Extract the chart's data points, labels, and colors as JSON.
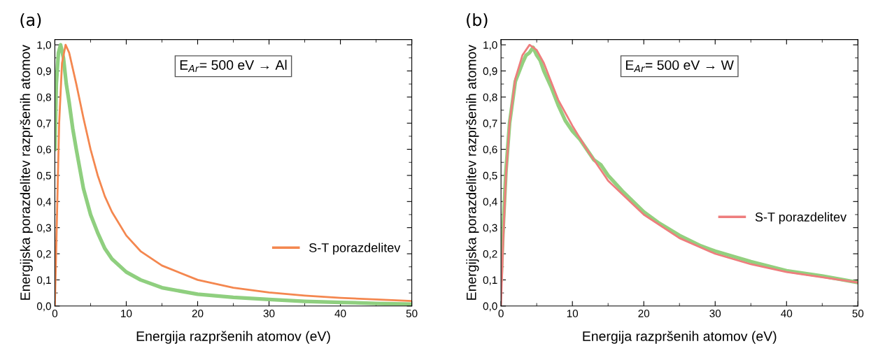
{
  "chart_data": [
    {
      "type": "line",
      "title": "(a)",
      "xlabel": "Energija razpršenih atomov (eV)",
      "ylabel": "Energijska porazdelitev razpršenih atomov",
      "annotations": [
        "E$_{Ar}$= 500 eV → Al"
      ],
      "legend": "bottom right",
      "grid": false,
      "xlim": [
        0,
        50
      ],
      "ylim": [
        0,
        1.02
      ],
      "xticks": [
        0,
        10,
        20,
        30,
        40,
        50
      ],
      "yticks": [
        {
          "value": 0,
          "label": "0,0"
        },
        {
          "value": 0.1,
          "label": "0,1"
        },
        {
          "value": 0.2,
          "label": "0,2"
        },
        {
          "value": 0.3,
          "label": "0,3"
        },
        {
          "value": 0.4,
          "label": "0,4"
        },
        {
          "value": 0.5,
          "label": "0,5"
        },
        {
          "value": 0.6,
          "label": "0,6"
        },
        {
          "value": 0.7,
          "label": "0,7"
        },
        {
          "value": 0.8,
          "label": "0,8"
        },
        {
          "value": 0.9,
          "label": "0,9"
        },
        {
          "value": 1.0,
          "label": "1,0"
        }
      ],
      "series": [
        {
          "color": "#8fcf7f",
          "x": [
            0,
            0.2,
            0.5,
            0.8,
            1.2,
            1.6,
            2,
            2.5,
            3,
            4,
            5,
            6,
            7,
            8,
            10,
            12,
            15,
            20,
            25,
            30,
            35,
            40,
            45,
            50
          ],
          "values": [
            0.6,
            0.85,
            0.97,
            1.0,
            0.95,
            0.85,
            0.78,
            0.68,
            0.6,
            0.45,
            0.35,
            0.28,
            0.22,
            0.18,
            0.13,
            0.1,
            0.07,
            0.045,
            0.033,
            0.025,
            0.018,
            0.014,
            0.01,
            0.007
          ]
        },
        {
          "name": "S-T porazdelitev",
          "color": "#f4874f",
          "x": [
            0,
            0.3,
            0.6,
            1.0,
            1.5,
            2,
            3,
            4,
            5,
            6,
            7,
            8,
            10,
            12,
            15,
            20,
            25,
            30,
            35,
            40,
            45,
            50
          ],
          "values": [
            0,
            0.35,
            0.7,
            0.93,
            1.0,
            0.97,
            0.85,
            0.72,
            0.6,
            0.5,
            0.42,
            0.36,
            0.27,
            0.21,
            0.155,
            0.1,
            0.07,
            0.052,
            0.04,
            0.031,
            0.025,
            0.019
          ]
        }
      ]
    },
    {
      "type": "line",
      "title": "(b)",
      "xlabel": "Energija razpršenih atomov (eV)",
      "ylabel": "Energijska porazdelitev razpršenih atomov",
      "annotations": [
        "E$_{Ar}$= 500 eV → W"
      ],
      "legend": "right",
      "grid": false,
      "xlim": [
        0,
        50
      ],
      "ylim": [
        0,
        1.02
      ],
      "xticks": [
        0,
        10,
        20,
        30,
        40,
        50
      ],
      "yticks": [
        {
          "value": 0,
          "label": "0,0"
        },
        {
          "value": 0.1,
          "label": "0,1"
        },
        {
          "value": 0.2,
          "label": "0,2"
        },
        {
          "value": 0.3,
          "label": "0,3"
        },
        {
          "value": 0.4,
          "label": "0,4"
        },
        {
          "value": 0.5,
          "label": "0,5"
        },
        {
          "value": 0.6,
          "label": "0,6"
        },
        {
          "value": 0.7,
          "label": "0,7"
        },
        {
          "value": 0.8,
          "label": "0,8"
        },
        {
          "value": 0.9,
          "label": "0,9"
        },
        {
          "value": 1.0,
          "label": "1,0"
        }
      ],
      "series": [
        {
          "color": "#93d07f",
          "x": [
            0,
            0.3,
            0.7,
            1.2,
            2,
            3,
            3.5,
            4,
            4.5,
            5,
            5.5,
            6,
            7,
            8,
            9,
            10,
            11,
            12,
            13,
            14,
            15,
            17,
            20,
            22,
            25,
            28,
            30,
            35,
            40,
            45,
            50
          ],
          "values": [
            0.1,
            0.3,
            0.52,
            0.7,
            0.86,
            0.93,
            0.96,
            0.97,
            0.99,
            0.96,
            0.94,
            0.9,
            0.84,
            0.77,
            0.71,
            0.67,
            0.64,
            0.6,
            0.56,
            0.54,
            0.5,
            0.44,
            0.36,
            0.32,
            0.27,
            0.23,
            0.21,
            0.17,
            0.135,
            0.115,
            0.09
          ]
        },
        {
          "name": "S-T porazdelitev",
          "color": "#ee7d7d",
          "x": [
            0,
            0.3,
            0.7,
            1.2,
            2,
            3,
            4,
            5,
            6,
            7,
            8,
            10,
            12,
            15,
            20,
            25,
            30,
            35,
            40,
            45,
            50
          ],
          "values": [
            0,
            0.25,
            0.5,
            0.7,
            0.87,
            0.96,
            1.0,
            0.98,
            0.93,
            0.86,
            0.79,
            0.69,
            0.6,
            0.48,
            0.35,
            0.26,
            0.2,
            0.16,
            0.13,
            0.11,
            0.09
          ]
        }
      ]
    }
  ]
}
